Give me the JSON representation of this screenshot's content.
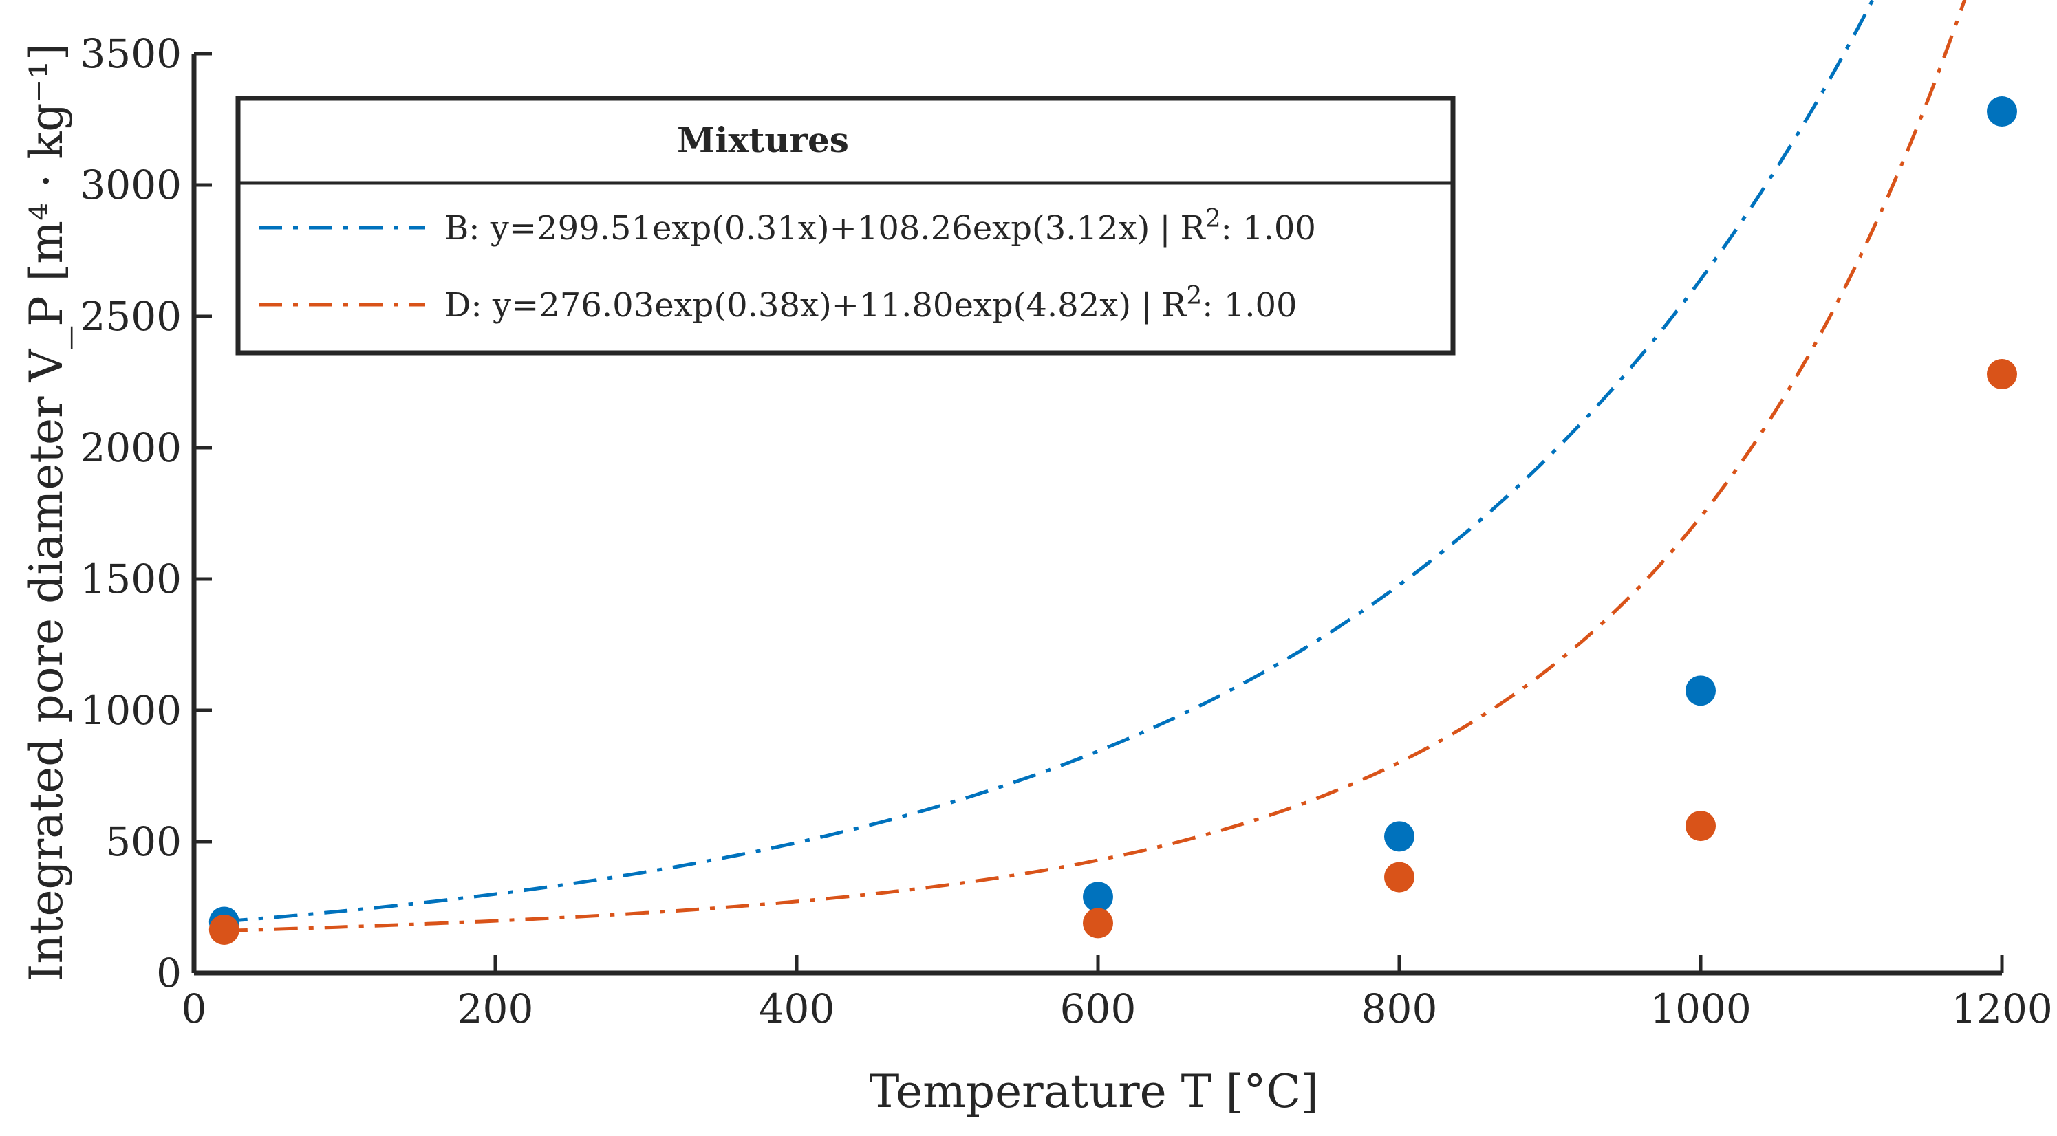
{
  "chart_data": {
    "type": "scatter",
    "xlabel": "Temperature T [°C]",
    "ylabel": "Integrated pore diameter V_P [m⁴ · kg⁻¹]",
    "xlim": [
      0,
      1200
    ],
    "ylim": [
      0,
      3500
    ],
    "x_ticks": [
      "0",
      "200",
      "400",
      "600",
      "800",
      "1000",
      "1200"
    ],
    "y_ticks": [
      "0",
      "500",
      "1000",
      "1500",
      "2000",
      "2500",
      "3000",
      "3500"
    ],
    "grid": false,
    "legend": {
      "title": "Mixtures",
      "position": "top-left",
      "entries": [
        {
          "label": "B: y=299.51exp(0.31x)+108.26exp(3.12x)",
          "r2_label": "R",
          "r2_sup": "2",
          "r2_value": ": 1.00"
        },
        {
          "label": "D: y=276.03exp(0.38x)+11.80exp(4.82x)",
          "r2_label": "R",
          "r2_sup": "2",
          "r2_value": ": 1.00"
        }
      ]
    },
    "series": [
      {
        "name": "B",
        "color": "#0072BD",
        "x": [
          20,
          600,
          800,
          1000,
          1200
        ],
        "y": [
          195,
          290,
          520,
          1075,
          3280
        ],
        "fit": {
          "a": 299.51,
          "b": 0.31,
          "c": 108.26,
          "d": 3.12,
          "x_scale": 1000,
          "offset": -220
        }
      },
      {
        "name": "D",
        "color": "#D95319",
        "x": [
          20,
          600,
          800,
          1000,
          1200
        ],
        "y": [
          165,
          190,
          365,
          560,
          2280
        ],
        "fit": {
          "a": 276.03,
          "b": 0.38,
          "c": 11.8,
          "d": 4.82,
          "x_scale": 1000,
          "offset": -130
        }
      }
    ]
  }
}
